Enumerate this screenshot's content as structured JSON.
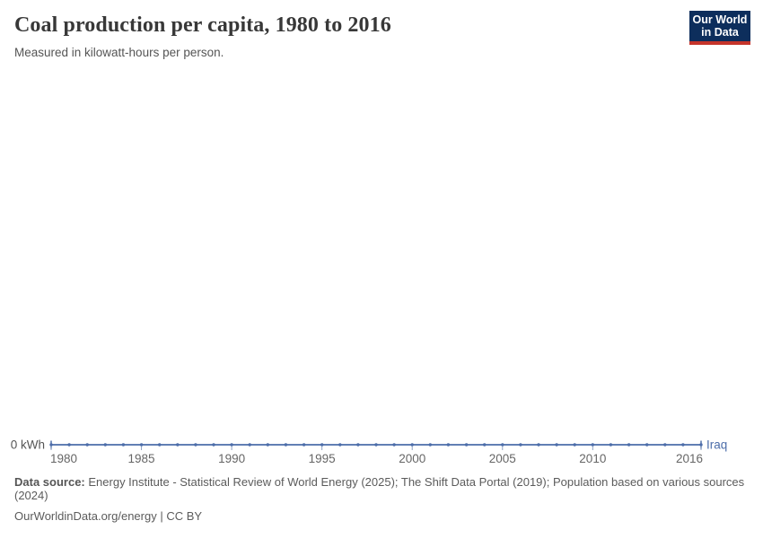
{
  "header": {
    "title": "Coal production per capita, 1980 to 2016",
    "subtitle": "Measured in kilowatt-hours per person.",
    "logo": {
      "line1": "Our World",
      "line2": "in Data",
      "bg_color": "#0d2e5c",
      "stripe_color": "#c5342b"
    }
  },
  "chart_data": {
    "type": "line",
    "title": "Coal production per capita, 1980 to 2016",
    "subtitle": "Measured in kilowatt-hours per person.",
    "unit": "kWh",
    "x": [
      1980,
      1981,
      1982,
      1983,
      1984,
      1985,
      1986,
      1987,
      1988,
      1989,
      1990,
      1991,
      1992,
      1993,
      1994,
      1995,
      1996,
      1997,
      1998,
      1999,
      2000,
      2001,
      2002,
      2003,
      2004,
      2005,
      2006,
      2007,
      2008,
      2009,
      2010,
      2011,
      2012,
      2013,
      2014,
      2015,
      2016
    ],
    "series": [
      {
        "name": "Iraq",
        "color": "#4c6da9",
        "values": [
          0,
          0,
          0,
          0,
          0,
          0,
          0,
          0,
          0,
          0,
          0,
          0,
          0,
          0,
          0,
          0,
          0,
          0,
          0,
          0,
          0,
          0,
          0,
          0,
          0,
          0,
          0,
          0,
          0,
          0,
          0,
          0,
          0,
          0,
          0,
          0,
          0
        ]
      }
    ],
    "x_ticks": [
      1980,
      1985,
      1990,
      1995,
      2000,
      2005,
      2010,
      2016
    ],
    "y_zero_label": "0 kWh",
    "xlim": [
      1980,
      2016
    ],
    "ylim": [
      0,
      0
    ],
    "grid": false,
    "legend_position": "end-of-line"
  },
  "footer": {
    "datasource_label": "Data source:",
    "datasource_text": "Energy Institute - Statistical Review of World Energy (2025); The Shift Data Portal (2019); Population based on various sources (2024)",
    "url_label": "OurWorldinData.org/energy",
    "separator": " | ",
    "license_label": "CC BY"
  },
  "colors": {
    "line": "#4c6da9",
    "tick_label": "#666666",
    "axis_zero_label": "#555555",
    "tick_mark": "#8fa2c4"
  }
}
